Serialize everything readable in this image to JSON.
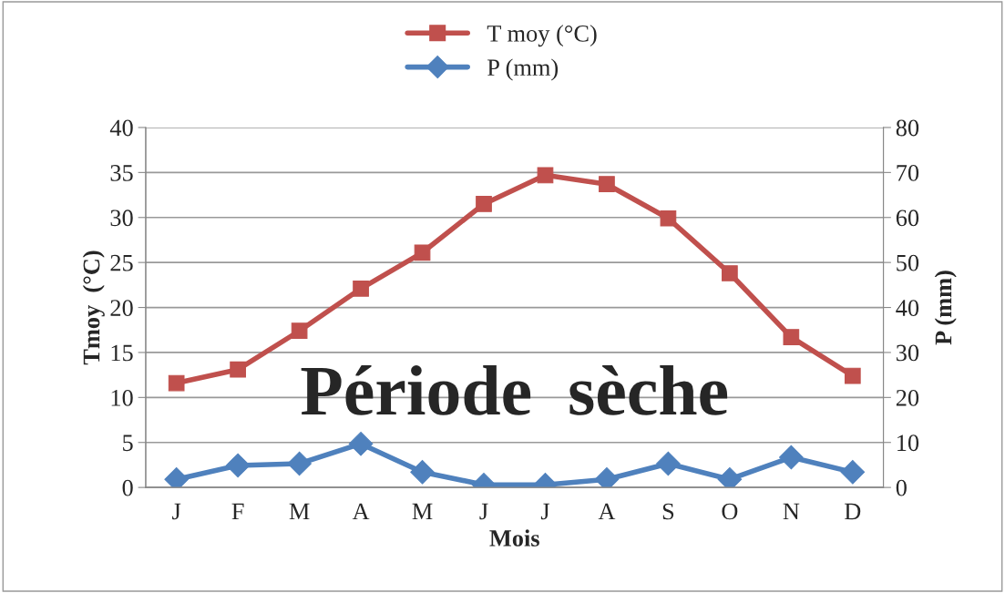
{
  "chart_data": {
    "type": "line",
    "categories": [
      "J",
      "F",
      "M",
      "A",
      "M",
      "J",
      "J",
      "A",
      "S",
      "O",
      "N",
      "D"
    ],
    "series": [
      {
        "name": "T moy (°C)",
        "color": "#c0504d",
        "marker": "square",
        "values": [
          11.6,
          13.1,
          17.4,
          22.1,
          26.1,
          31.5,
          34.7,
          33.7,
          29.9,
          23.8,
          16.7,
          12.4
        ]
      },
      {
        "name": "P (mm)",
        "color": "#4f81bd",
        "marker": "diamond",
        "axis": "y2",
        "values": [
          1.8,
          4.9,
          5.3,
          9.7,
          3.4,
          0.6,
          0.6,
          1.8,
          5.3,
          1.8,
          6.7,
          3.4
        ]
      }
    ],
    "xlabel": "Mois",
    "ylabel": "Tmoy  (°C)",
    "y2label": "P (mm)",
    "ylim": [
      0,
      40
    ],
    "yticks": [
      0,
      5,
      10,
      15,
      20,
      25,
      30,
      35,
      40
    ],
    "y2lim": [
      0,
      80
    ],
    "y2ticks": [
      0,
      10,
      20,
      30,
      40,
      50,
      60,
      70,
      80
    ],
    "annotations": [
      "Période  sèche"
    ],
    "grid": "y",
    "legend": "top",
    "line_style": "solid"
  }
}
